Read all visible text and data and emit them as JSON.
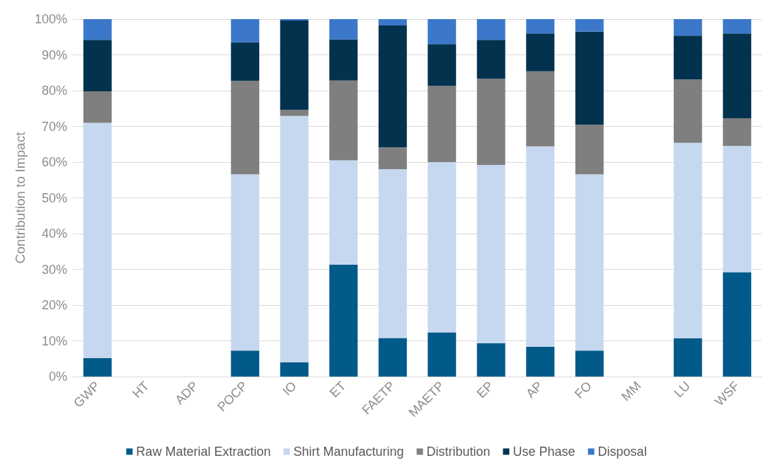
{
  "chart_data": {
    "type": "bar",
    "stacked": true,
    "ylabel": "Contribution to Impact",
    "categories": [
      "GWP",
      "HT",
      "ADP",
      "POCP",
      "IO",
      "ET",
      "FAETP",
      "MAETP",
      "EP",
      "AP",
      "FO",
      "MM",
      "LU",
      "WSF"
    ],
    "series": [
      {
        "name": "Raw Material Extraction",
        "color": "#025a8a",
        "values": [
          5.2,
          null,
          null,
          7.3,
          4.0,
          31.3,
          10.8,
          12.4,
          9.3,
          8.3,
          7.3,
          null,
          10.7,
          29.2
        ]
      },
      {
        "name": "Shirt Manufacturing",
        "color": "#c6d8ef",
        "values": [
          65.8,
          null,
          null,
          49.3,
          68.9,
          29.2,
          47.2,
          47.6,
          49.9,
          56.1,
          49.3,
          null,
          54.7,
          35.3
        ]
      },
      {
        "name": "Distribution",
        "color": "#7f7f7f",
        "values": [
          8.8,
          null,
          null,
          26.1,
          1.7,
          22.3,
          6.1,
          21.3,
          24.1,
          21.0,
          13.9,
          null,
          17.7,
          7.8
        ]
      },
      {
        "name": "Use Phase",
        "color": "#03324f",
        "values": [
          14.4,
          null,
          null,
          10.8,
          25.0,
          11.5,
          34.1,
          11.7,
          10.9,
          10.6,
          26.0,
          null,
          12.3,
          23.7
        ]
      },
      {
        "name": "Disposal",
        "color": "#3c78c9",
        "values": [
          5.8,
          null,
          null,
          6.5,
          0.4,
          5.7,
          1.8,
          7.0,
          5.8,
          4.0,
          3.5,
          null,
          4.6,
          4.0
        ]
      }
    ],
    "ylim": [
      0,
      100
    ],
    "yticks": [
      {
        "value": 0,
        "label": "0%"
      },
      {
        "value": 10,
        "label": "10%"
      },
      {
        "value": 20,
        "label": "20%"
      },
      {
        "value": 30,
        "label": "30%"
      },
      {
        "value": 40,
        "label": "40%"
      },
      {
        "value": 50,
        "label": "50%"
      },
      {
        "value": 60,
        "label": "60%"
      },
      {
        "value": 70,
        "label": "70%"
      },
      {
        "value": 80,
        "label": "80%"
      },
      {
        "value": 90,
        "label": "90%"
      },
      {
        "value": 100,
        "label": "100%"
      }
    ],
    "grid": "y",
    "legend": "bottom"
  }
}
